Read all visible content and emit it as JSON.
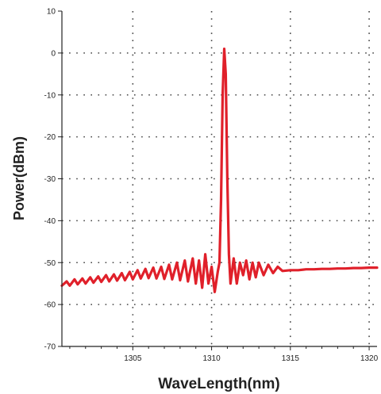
{
  "chart_data": {
    "type": "line",
    "title": "",
    "xlabel": "WaveLength(nm)",
    "ylabel": "Power(dBm)",
    "xlim": [
      1300.5,
      1320.5
    ],
    "ylim": [
      -70,
      10
    ],
    "xticks": [
      1305,
      1310,
      1315,
      1320
    ],
    "yticks": [
      10,
      0,
      -10,
      -20,
      -30,
      -40,
      -50,
      -60,
      -70
    ],
    "grid": true,
    "grid_style": "dotted",
    "legend": "none",
    "series": [
      {
        "color": "#e0202a",
        "x": [
          1300.5,
          1300.8,
          1301.0,
          1301.3,
          1301.5,
          1301.8,
          1302.0,
          1302.3,
          1302.5,
          1302.8,
          1303.0,
          1303.3,
          1303.5,
          1303.8,
          1304.0,
          1304.3,
          1304.5,
          1304.8,
          1305.0,
          1305.3,
          1305.5,
          1305.8,
          1306.0,
          1306.3,
          1306.5,
          1306.8,
          1307.0,
          1307.3,
          1307.5,
          1307.8,
          1308.0,
          1308.3,
          1308.5,
          1308.8,
          1309.0,
          1309.2,
          1309.4,
          1309.6,
          1309.8,
          1310.0,
          1310.2,
          1310.4,
          1310.5,
          1310.6,
          1310.7,
          1310.8,
          1310.9,
          1311.0,
          1311.1,
          1311.2,
          1311.4,
          1311.6,
          1311.8,
          1312.0,
          1312.2,
          1312.4,
          1312.6,
          1312.8,
          1313.0,
          1313.3,
          1313.6,
          1313.9,
          1314.2,
          1314.5,
          1315.0,
          1315.5,
          1316.0,
          1316.5,
          1317.0,
          1317.5,
          1318.0,
          1318.5,
          1319.0,
          1319.5,
          1320.0,
          1320.5
        ],
        "y": [
          -55.5,
          -54.5,
          -55.5,
          -54.0,
          -55.2,
          -53.8,
          -55.0,
          -53.5,
          -54.8,
          -53.3,
          -54.6,
          -53.0,
          -54.5,
          -52.8,
          -54.3,
          -52.5,
          -54.2,
          -52.2,
          -54.0,
          -51.8,
          -53.8,
          -51.5,
          -53.7,
          -51.2,
          -53.8,
          -51.0,
          -53.9,
          -50.5,
          -54.0,
          -50.0,
          -54.2,
          -49.5,
          -54.5,
          -49.0,
          -55.0,
          -49.5,
          -56.0,
          -48.0,
          -55.0,
          -51.0,
          -57.0,
          -52.0,
          -50.0,
          -35.0,
          -10.0,
          1.0,
          -5.0,
          -30.0,
          -48.0,
          -55.0,
          -49.0,
          -55.0,
          -50.0,
          -53.0,
          -49.5,
          -54.0,
          -50.0,
          -53.5,
          -50.0,
          -53.0,
          -50.5,
          -52.5,
          -51.0,
          -52.0,
          -51.8,
          -51.8,
          -51.6,
          -51.6,
          -51.5,
          -51.5,
          -51.4,
          -51.4,
          -51.3,
          -51.3,
          -51.2,
          -51.2
        ]
      }
    ]
  }
}
